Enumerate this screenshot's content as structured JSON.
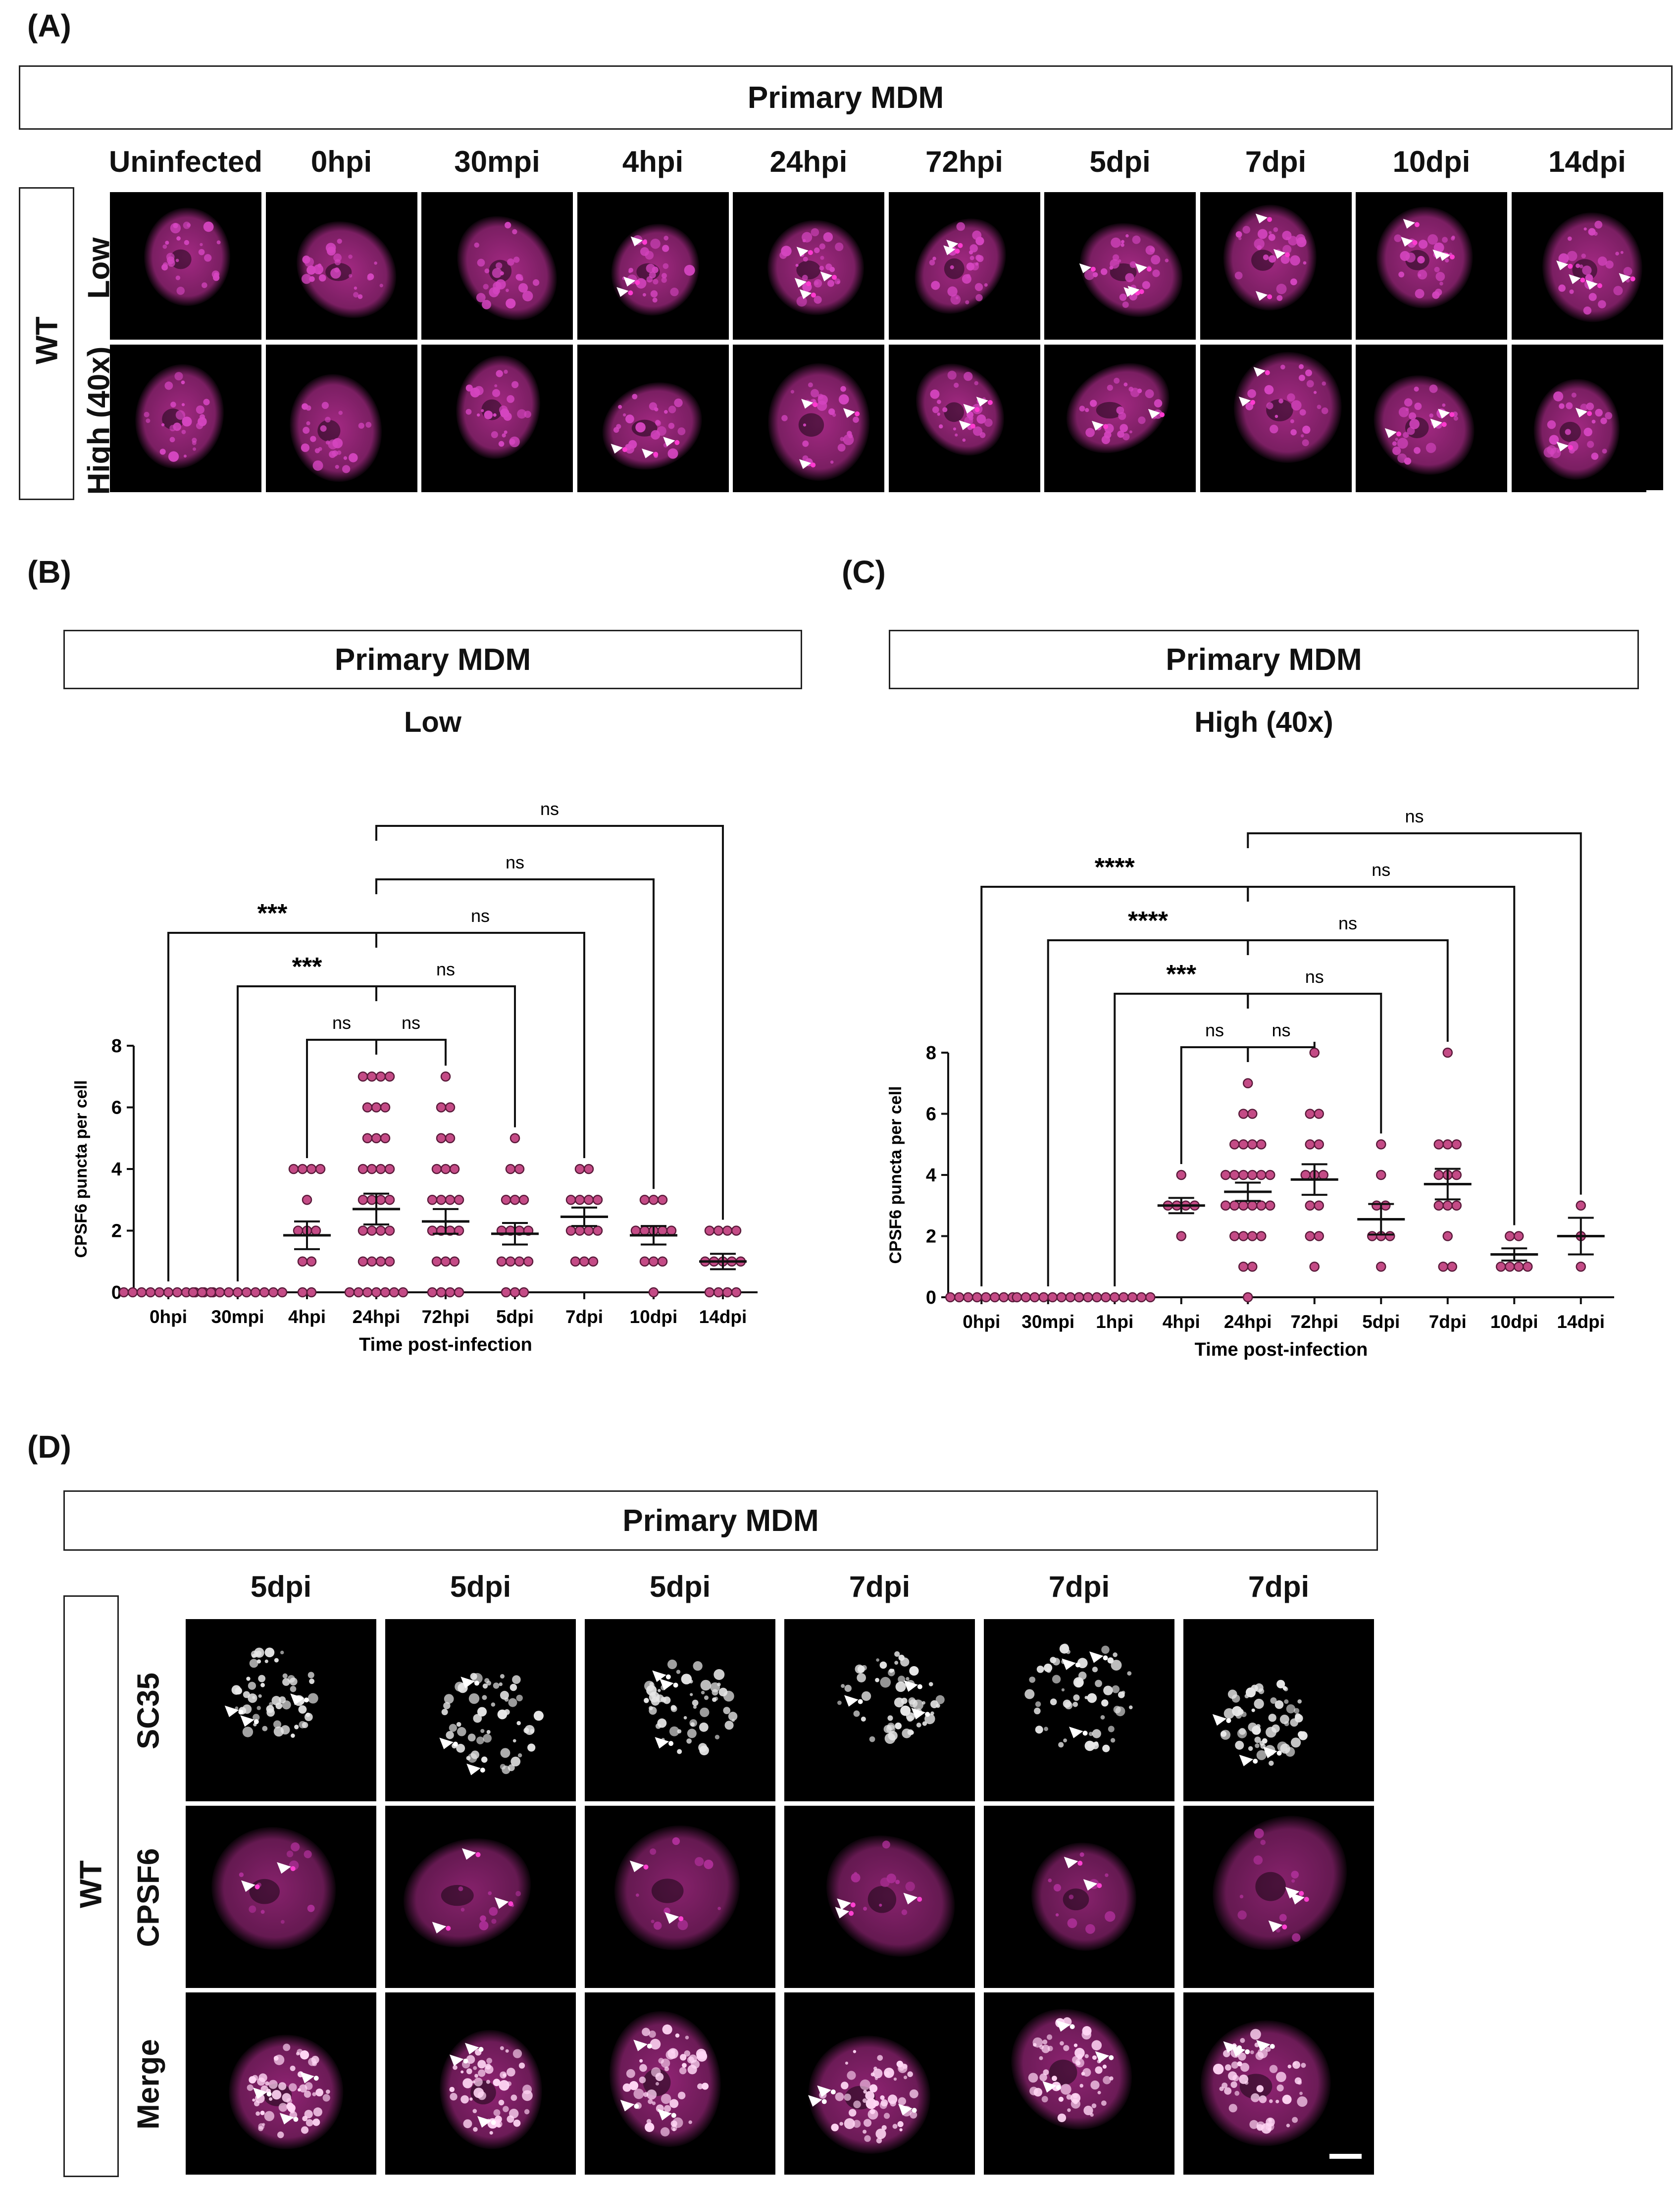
{
  "panelA": {
    "letter": "(A)",
    "header": "Primary MDM",
    "row_group": "WT",
    "rows": [
      "Low",
      "High (40x)"
    ],
    "columns": [
      "Uninfected",
      "0hpi",
      "30mpi",
      "4hpi",
      "24hpi",
      "72hpi",
      "5dpi",
      "7dpi",
      "10dpi",
      "14dpi"
    ]
  },
  "panelB": {
    "letter": "(B)",
    "header": "Primary MDM",
    "subtitle": "Low"
  },
  "panelC": {
    "letter": "(C)",
    "header": "Primary MDM",
    "subtitle": "High (40x)"
  },
  "panelD": {
    "letter": "(D)",
    "header": "Primary MDM",
    "row_group": "WT",
    "rows": [
      "SC35",
      "CPSF6",
      "Merge"
    ],
    "columns": [
      "5dpi",
      "5dpi",
      "5dpi",
      "7dpi",
      "7dpi",
      "7dpi"
    ]
  },
  "colors": {
    "magenta": "#c0309a",
    "dot_fill": "#c44b86",
    "dot_stroke": "#5a1a3a",
    "background": "#000000"
  },
  "chart_data": [
    {
      "type": "scatter",
      "title": "Low",
      "xlabel": "Time post-infection",
      "ylabel": "CPSF6 puncta per cell",
      "ylim": [
        0,
        8
      ],
      "yticks": [
        "0",
        "2",
        "4",
        "6",
        "8"
      ],
      "categories": [
        "0hpi",
        "30mpi",
        "4hpi",
        "24hpi",
        "72hpi",
        "5dpi",
        "7dpi",
        "10dpi",
        "14dpi"
      ],
      "means": [
        0,
        0,
        1.85,
        2.7,
        2.3,
        1.9,
        2.45,
        1.85,
        1.0
      ],
      "sem": [
        0,
        0,
        0.45,
        0.5,
        0.4,
        0.35,
        0.3,
        0.3,
        0.25
      ],
      "points": [
        [
          0,
          0,
          0,
          0,
          0,
          0,
          0,
          0,
          0,
          0,
          0
        ],
        [
          0,
          0,
          0,
          0,
          0,
          0,
          0,
          0,
          0,
          0,
          0
        ],
        [
          0,
          0,
          1,
          2,
          2,
          3,
          4,
          4,
          4,
          4,
          2,
          1
        ],
        [
          0,
          0,
          0,
          0,
          0,
          0,
          0,
          1,
          1,
          1,
          1,
          2,
          2,
          2,
          2,
          3,
          3,
          3,
          3,
          4,
          4,
          4,
          4,
          5,
          5,
          5,
          6,
          6,
          6,
          7,
          7,
          7,
          7
        ],
        [
          0,
          0,
          0,
          0,
          1,
          1,
          1,
          2,
          2,
          2,
          2,
          3,
          3,
          3,
          3,
          4,
          4,
          4,
          5,
          5,
          6,
          6,
          7
        ],
        [
          0,
          0,
          0,
          1,
          1,
          1,
          1,
          2,
          2,
          2,
          2,
          3,
          3,
          3,
          4,
          4,
          5
        ],
        [
          1,
          1,
          1,
          2,
          2,
          2,
          2,
          3,
          3,
          3,
          3,
          4,
          4
        ],
        [
          0,
          1,
          1,
          1,
          2,
          2,
          2,
          2,
          2,
          3,
          3,
          3
        ],
        [
          0,
          0,
          0,
          0,
          1,
          1,
          1,
          1,
          1,
          2,
          2,
          2,
          2
        ]
      ],
      "comparisons": [
        {
          "from": "0hpi",
          "to": "24hpi",
          "label": "***"
        },
        {
          "from": "30mpi",
          "to": "24hpi",
          "label": "***"
        },
        {
          "from": "4hpi",
          "to": "24hpi",
          "label": "ns"
        },
        {
          "from": "24hpi",
          "to": "72hpi",
          "label": "ns"
        },
        {
          "from": "24hpi",
          "to": "5dpi",
          "label": "ns"
        },
        {
          "from": "24hpi",
          "to": "7dpi",
          "label": "ns"
        },
        {
          "from": "24hpi",
          "to": "10dpi",
          "label": "ns"
        },
        {
          "from": "24hpi",
          "to": "14dpi",
          "label": "ns"
        }
      ]
    },
    {
      "type": "scatter",
      "title": "High (40x)",
      "xlabel": "Time post-infection",
      "ylabel": "CPSF6 puncta per cell",
      "ylim": [
        0,
        8
      ],
      "yticks": [
        "0",
        "2",
        "4",
        "6",
        "8"
      ],
      "categories": [
        "0hpi",
        "30mpi",
        "1hpi",
        "4hpi",
        "24hpi",
        "72hpi",
        "5dpi",
        "7dpi",
        "10dpi",
        "14dpi"
      ],
      "means": [
        0,
        0,
        0,
        3.0,
        3.45,
        3.85,
        2.55,
        3.7,
        1.4,
        2.0
      ],
      "sem": [
        0,
        0,
        0,
        0.25,
        0.3,
        0.5,
        0.5,
        0.5,
        0.2,
        0.6
      ],
      "points": [
        [
          0,
          0,
          0,
          0,
          0,
          0,
          0,
          0
        ],
        [
          0,
          0,
          0,
          0,
          0,
          0,
          0,
          0
        ],
        [
          0,
          0,
          0,
          0,
          0,
          0,
          0,
          0,
          0
        ],
        [
          2,
          3,
          3,
          3,
          3,
          4
        ],
        [
          0,
          1,
          1,
          2,
          2,
          2,
          2,
          3,
          3,
          3,
          3,
          3,
          3,
          4,
          4,
          4,
          4,
          4,
          4,
          5,
          5,
          5,
          5,
          6,
          6,
          7
        ],
        [
          1,
          2,
          2,
          3,
          3,
          4,
          4,
          4,
          5,
          5,
          6,
          6,
          8
        ],
        [
          1,
          2,
          2,
          2,
          3,
          3,
          4,
          5
        ],
        [
          1,
          1,
          2,
          3,
          3,
          3,
          4,
          4,
          4,
          5,
          5,
          5,
          8
        ],
        [
          1,
          1,
          1,
          1,
          2,
          2
        ],
        [
          1,
          2,
          3
        ]
      ],
      "comparisons": [
        {
          "from": "0hpi",
          "to": "24hpi",
          "label": "****"
        },
        {
          "from": "30mpi",
          "to": "24hpi",
          "label": "****"
        },
        {
          "from": "1hpi",
          "to": "24hpi",
          "label": "***"
        },
        {
          "from": "4hpi",
          "to": "24hpi",
          "label": "ns"
        },
        {
          "from": "24hpi",
          "to": "72hpi",
          "label": "ns"
        },
        {
          "from": "24hpi",
          "to": "5dpi",
          "label": "ns"
        },
        {
          "from": "24hpi",
          "to": "7dpi",
          "label": "ns"
        },
        {
          "from": "24hpi",
          "to": "10dpi",
          "label": "ns"
        },
        {
          "from": "24hpi",
          "to": "14dpi",
          "label": "ns"
        }
      ]
    }
  ]
}
